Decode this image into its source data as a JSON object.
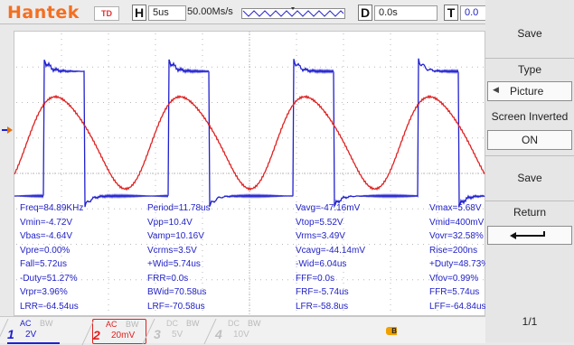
{
  "topbar": {
    "logo": "Hantek",
    "td_label": "TD",
    "h_label": "H",
    "timebase": "5us",
    "sample_rate": "50.00Ms/s",
    "d_label": "D",
    "delay": "0.0s",
    "t_label": "T",
    "trigger_level": "0.0"
  },
  "measurements": [
    [
      "Freq=84.89KHz",
      "Period=11.78us",
      "Vavg=-47.16mV",
      "Vmax=5.68V"
    ],
    [
      "Vmin=-4.72V",
      "Vpp=10.4V",
      "Vtop=5.52V",
      "Vmid=400mV"
    ],
    [
      "Vbas=-4.64V",
      "Vamp=10.16V",
      "Vrms=3.49V",
      "Vovr=32.58%"
    ],
    [
      "Vpre=0.00%",
      "Vcrms=3.5V",
      "Vcavg=-44.14mV",
      "Rise=200ns"
    ],
    [
      "Fall=5.72us",
      "+Wid=5.74us",
      "-Wid=6.04us",
      "+Duty=48.73%"
    ],
    [
      "-Duty=51.27%",
      "FRR=0.0s",
      "FFF=0.0s",
      "Vfov=0.99%"
    ],
    [
      "Vrpr=3.96%",
      "BWid=70.58us",
      "FRF=-5.74us",
      "FFR=5.74us"
    ],
    [
      "LRR=-64.54us",
      "LRF=-70.58us",
      "LFR=-58.8us",
      "LFF=-64.84us"
    ]
  ],
  "channels": [
    {
      "num": "1",
      "coupling": "AC",
      "bw": "BW",
      "scale": "2V",
      "color": "#2020d0"
    },
    {
      "num": "2",
      "coupling": "AC",
      "bw": "BW",
      "scale": "20mV",
      "color": "#e02020"
    },
    {
      "num": "3",
      "coupling": "DC",
      "bw": "BW",
      "scale": "5V",
      "color": "#c0c0c0"
    },
    {
      "num": "4",
      "coupling": "DC",
      "bw": "BW",
      "scale": "10V",
      "color": "#c0c0c0"
    }
  ],
  "menu": {
    "title": "Save",
    "type_label": "Type",
    "type_value": "Picture",
    "screen_inverted_label": "Screen Inverted",
    "screen_inverted_value": "ON",
    "save_label": "Save",
    "return_label": "Return",
    "page": "1/1"
  },
  "colors": {
    "ch1": "#2020d0",
    "ch2": "#e02020",
    "logo": "#f36f21",
    "measure_text": "#2121c8"
  },
  "icons": {
    "back": "return-arrow-icon",
    "arrow_left": "triangle-left-icon",
    "usb": "usb-icon"
  }
}
